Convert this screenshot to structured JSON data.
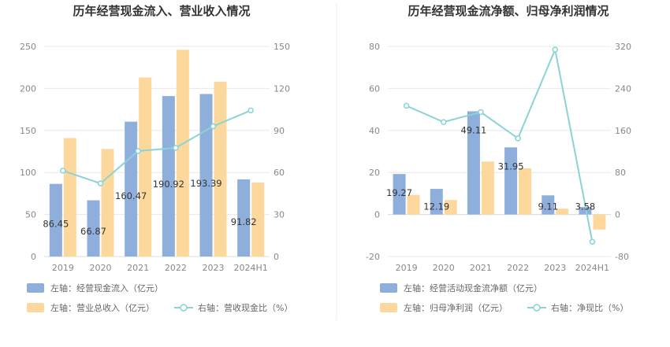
{
  "chart_data": [
    {
      "type": "bar+line",
      "title": "历年经营现金流入、营业收入情况",
      "categories": [
        "2019",
        "2020",
        "2021",
        "2022",
        "2023",
        "2024H1"
      ],
      "left_axis": {
        "min": 0,
        "max": 250,
        "ticks": [
          0,
          50,
          100,
          150,
          200,
          250
        ]
      },
      "right_axis": {
        "min": 0,
        "max": 150,
        "ticks": [
          0,
          30,
          60,
          90,
          120,
          150
        ]
      },
      "series": [
        {
          "name": "左轴：经营现金流入（亿元）",
          "type": "bar",
          "axis": "left",
          "color": "#8eaedc",
          "values": [
            86.45,
            66.87,
            160.47,
            190.92,
            193.39,
            91.82
          ],
          "labels": [
            "86.45",
            "66.87",
            "160.47",
            "190.92",
            "193.39",
            "91.82"
          ]
        },
        {
          "name": "左轴：营业总收入（亿元）",
          "type": "bar",
          "axis": "left",
          "color": "#fdd89c",
          "values": [
            141,
            128,
            213,
            246,
            208,
            88
          ]
        },
        {
          "name": "右轴：营收现金比（%）",
          "type": "line",
          "axis": "right",
          "color": "#8ad3d6",
          "values": [
            61.3,
            52.2,
            75.3,
            77.6,
            93.0,
            104.3
          ]
        }
      ],
      "grid": true,
      "legend_position": "bottom-left"
    },
    {
      "type": "bar+line",
      "title": "历年经营现金流净额、归母净利润情况",
      "categories": [
        "2019",
        "2020",
        "2021",
        "2022",
        "2023",
        "2024H1"
      ],
      "left_axis": {
        "min": -20,
        "max": 80,
        "ticks": [
          -20,
          0,
          20,
          40,
          60,
          80
        ]
      },
      "right_axis": {
        "min": -80,
        "max": 320,
        "ticks": [
          -80,
          0,
          80,
          160,
          240,
          320
        ]
      },
      "series": [
        {
          "name": "左轴：经营活动现金流净额（亿元）",
          "type": "bar",
          "axis": "left",
          "color": "#8eaedc",
          "values": [
            19.27,
            12.19,
            49.11,
            31.95,
            9.11,
            3.58
          ],
          "labels": [
            "19.27",
            "12.19",
            "49.11",
            "31.95",
            "9.11",
            "3.58"
          ]
        },
        {
          "name": "左轴：归母净利润（亿元）",
          "type": "bar",
          "axis": "left",
          "color": "#fdd89c",
          "values": [
            9.3,
            6.9,
            25.2,
            22.0,
            2.8,
            -7.2
          ]
        },
        {
          "name": "右轴：净现比（%）",
          "type": "line",
          "axis": "right",
          "color": "#8ad3d6",
          "values": [
            207,
            176,
            195,
            145,
            314,
            -52
          ]
        }
      ],
      "grid": true,
      "legend_position": "bottom-left"
    }
  ]
}
